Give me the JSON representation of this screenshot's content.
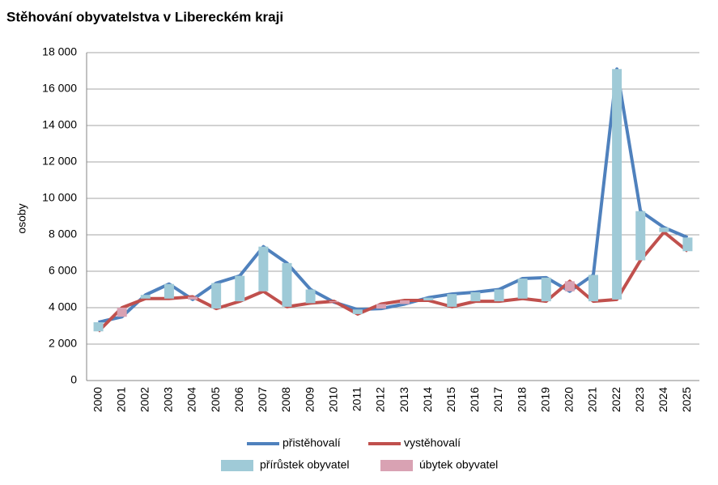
{
  "chart_data": {
    "type": "line",
    "title": "Stěhování obyvatelstva v Libereckém kraji",
    "y_label": "osoby",
    "categories": [
      "2000",
      "2001",
      "2002",
      "2003",
      "2004",
      "2005",
      "2006",
      "2007",
      "2008",
      "2009",
      "2010",
      "2011",
      "2012",
      "2013",
      "2014",
      "2015",
      "2016",
      "2017",
      "2018",
      "2019",
      "2020",
      "2021",
      "2022",
      "2023",
      "2024",
      "2025"
    ],
    "series": [
      {
        "name": "přistěhovalí",
        "color": "#4f81bd",
        "values": [
          3200,
          3500,
          4700,
          5300,
          4450,
          5350,
          5750,
          7350,
          6450,
          5000,
          4300,
          3900,
          3950,
          4200,
          4550,
          4750,
          4850,
          5000,
          5600,
          5650,
          4900,
          5800,
          17100,
          9300,
          8400,
          7850
        ]
      },
      {
        "name": "vystěhovalí",
        "color": "#c0504d",
        "values": [
          2700,
          4000,
          4500,
          4500,
          4600,
          3950,
          4350,
          4900,
          4050,
          4250,
          4350,
          3650,
          4200,
          4400,
          4400,
          4050,
          4350,
          4350,
          4500,
          4350,
          5450,
          4350,
          4450,
          6600,
          8150,
          7100
        ]
      }
    ],
    "updown_bars": {
      "up": {
        "name": "přírůstek obyvatel",
        "color": "#9fcad7"
      },
      "down": {
        "name": "úbytek obyvatel",
        "color": "#d9a2b3"
      }
    },
    "ylim": [
      0,
      18000
    ],
    "yticks": [
      0,
      {
        "value": 2000,
        "label": "2 000"
      },
      {
        "value": 4000,
        "label": "4 000"
      },
      {
        "value": 6000,
        "label": "6 000"
      },
      {
        "value": 8000,
        "label": "8 000"
      },
      {
        "value": 10000,
        "label": "10 000"
      },
      {
        "value": 12000,
        "label": "12 000"
      },
      {
        "value": 14000,
        "label": "14 000"
      },
      {
        "value": 16000,
        "label": "16 000"
      },
      {
        "value": 18000,
        "label": "18 000"
      }
    ],
    "grid": true
  }
}
